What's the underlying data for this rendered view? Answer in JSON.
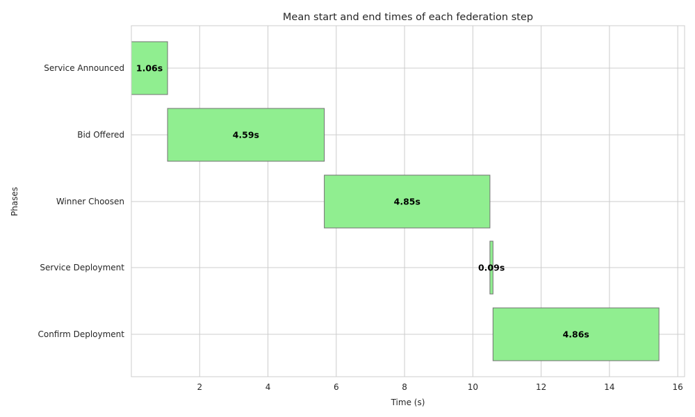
{
  "chart_data": {
    "type": "bar",
    "orientation": "horizontal",
    "title": "Mean start and end times of each federation step",
    "xlabel": "Time (s)",
    "ylabel": "Phases",
    "xlim": [
      0,
      16.2
    ],
    "xticks": [
      2,
      4,
      6,
      8,
      10,
      12,
      14,
      16
    ],
    "grid": true,
    "bar_color": "#90ee90",
    "bar_edge_color": "#707070",
    "categories": [
      "Service Announced",
      "Bid Offered",
      "Winner Choosen",
      "Service Deployment",
      "Confirm Deployment"
    ],
    "starts": [
      0,
      1.06,
      5.65,
      10.5,
      10.59
    ],
    "durations": [
      1.06,
      4.59,
      4.85,
      0.09,
      4.86
    ],
    "labels": [
      "1.06s",
      "4.59s",
      "4.85s",
      "0.09s",
      "4.86s"
    ]
  }
}
